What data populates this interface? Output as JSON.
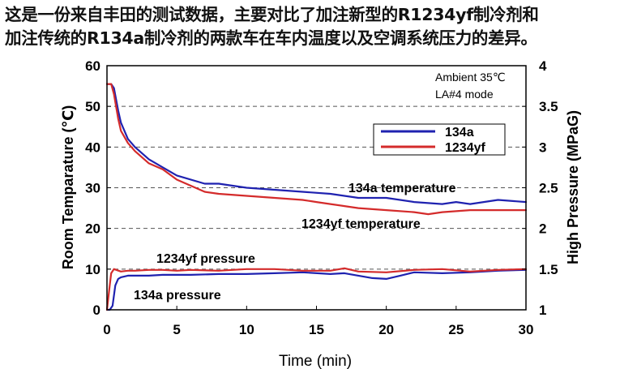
{
  "caption": {
    "line1": "这是一份来自丰田的测试数据，主要对比了加注新型的R1234yf制冷剂和",
    "line2": "加注传统的R134a制冷剂的两款车在车内温度以及空调系统压力的差异。"
  },
  "colors": {
    "r134a": "#1f22b0",
    "r1234yf": "#d42b2b",
    "axis": "#000000",
    "grid": "#555555"
  },
  "chart_data": {
    "type": "line",
    "xlabel": "Time (min)",
    "ylabel": "Room Temparature (℃)",
    "ylabel_right": "High Pressure (MPaG)",
    "xlim": [
      0,
      30
    ],
    "ylim": [
      0,
      60
    ],
    "ylim_right": [
      1,
      4
    ],
    "xticks": [
      0,
      5,
      10,
      15,
      20,
      25,
      30
    ],
    "yticks": [
      0,
      10,
      20,
      30,
      40,
      50,
      60
    ],
    "yticks_right": [
      "1",
      "1.5",
      "2",
      "2.5",
      "3",
      "3.5",
      "4"
    ],
    "grid": "horizontal dashed",
    "legend": {
      "placement": "upper-right",
      "entries": [
        {
          "label": "134a",
          "color": "#1f22b0"
        },
        {
          "label": "1234yf",
          "color": "#d42b2b"
        }
      ]
    },
    "annotations": {
      "conditions": [
        "Ambient 35℃",
        "LA#4 mode"
      ],
      "t134a_temp": "134a temperature",
      "t1234yf_temp": "1234yf temperature",
      "p1234yf": "1234yf pressure",
      "p134a": "134a pressure"
    },
    "series": [
      {
        "name": "134a",
        "quantity": "temperature",
        "axis": "left",
        "color": "#1f22b0",
        "x": [
          0,
          0.3,
          0.5,
          0.8,
          1,
          1.5,
          2,
          3,
          4,
          5,
          7,
          8,
          10,
          12,
          14,
          16,
          17,
          18,
          20,
          22,
          24,
          25,
          26,
          28,
          30
        ],
        "y": [
          55.5,
          55.5,
          54.5,
          49,
          46,
          42,
          40,
          37,
          35,
          33,
          31,
          31,
          30,
          29.5,
          29,
          28.5,
          28,
          27.5,
          27.5,
          26.5,
          26,
          26.5,
          26,
          27,
          26.5
        ]
      },
      {
        "name": "1234yf",
        "quantity": "temperature",
        "axis": "left",
        "color": "#d42b2b",
        "x": [
          0,
          0.3,
          0.5,
          0.8,
          1,
          1.5,
          2,
          3,
          4,
          5,
          6,
          7,
          8,
          10,
          12,
          14,
          15,
          16,
          17,
          18,
          20,
          22,
          23,
          24,
          26,
          28,
          30
        ],
        "y": [
          55.5,
          55.5,
          53,
          47,
          44,
          41,
          39,
          36,
          34.5,
          32,
          30.5,
          29,
          28.5,
          28,
          27.5,
          27,
          26.5,
          26,
          25.5,
          25,
          24.5,
          24,
          23.5,
          24,
          24.5,
          24.5,
          24.5
        ]
      },
      {
        "name": "134a",
        "quantity": "pressure",
        "axis": "right",
        "color": "#1f22b0",
        "x": [
          0,
          0.2,
          0.4,
          0.6,
          0.8,
          1,
          1.5,
          2,
          3,
          4,
          5,
          6,
          8,
          10,
          12,
          14,
          16,
          17,
          18,
          19,
          20,
          21,
          22,
          24,
          26,
          28,
          30
        ],
        "y": [
          1.0,
          1.0,
          1.05,
          1.3,
          1.38,
          1.4,
          1.42,
          1.42,
          1.42,
          1.43,
          1.43,
          1.43,
          1.44,
          1.44,
          1.45,
          1.46,
          1.44,
          1.45,
          1.42,
          1.39,
          1.38,
          1.42,
          1.46,
          1.45,
          1.46,
          1.48,
          1.49
        ]
      },
      {
        "name": "1234yf",
        "quantity": "pressure",
        "axis": "right",
        "color": "#d42b2b",
        "x": [
          0,
          0.2,
          0.3,
          0.5,
          1,
          1.5,
          2,
          3,
          4,
          5,
          6,
          8,
          10,
          12,
          14,
          16,
          17,
          18,
          20,
          22,
          24,
          26,
          28,
          30
        ],
        "y": [
          1.0,
          1.3,
          1.45,
          1.5,
          1.47,
          1.48,
          1.48,
          1.49,
          1.49,
          1.48,
          1.49,
          1.48,
          1.5,
          1.5,
          1.48,
          1.48,
          1.51,
          1.47,
          1.46,
          1.49,
          1.5,
          1.47,
          1.49,
          1.5
        ]
      }
    ]
  }
}
